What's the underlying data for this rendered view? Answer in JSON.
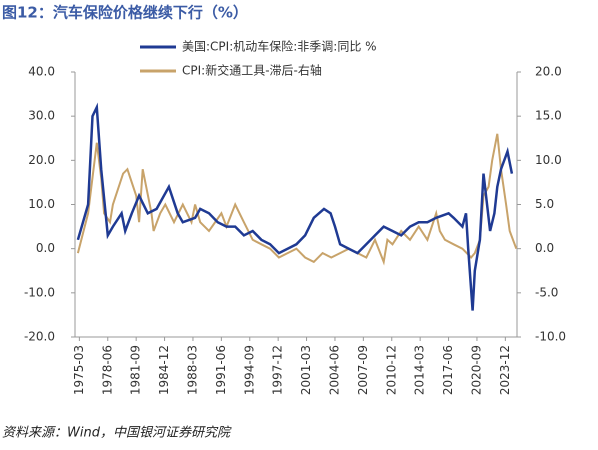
{
  "chart_data": {
    "type": "line",
    "title": "图12：汽车保险价格继续下行（%）",
    "source": "资料来源：Wind，中国银河证券研究院",
    "xlim": [
      "1974-09",
      "2025-04"
    ],
    "xticks": [
      "1975-03",
      "1978-06",
      "1981-09",
      "1984-12",
      "1988-03",
      "1991-06",
      "1994-09",
      "1997-12",
      "2001-03",
      "2004-06",
      "2007-09",
      "2010-12",
      "2014-03",
      "2017-06",
      "2020-09",
      "2023-12"
    ],
    "ylim": [
      -20,
      40
    ],
    "yticks": [
      {
        "value": -20,
        "label": "-20.0"
      },
      {
        "value": -10,
        "label": "-10.0"
      },
      {
        "value": 0,
        "label": "0.0"
      },
      {
        "value": 10,
        "label": "10.0"
      },
      {
        "value": 20,
        "label": "20.0"
      },
      {
        "value": 30,
        "label": "30.0"
      },
      {
        "value": 40,
        "label": "40.0"
      }
    ],
    "y2lim": [
      -10,
      20
    ],
    "y2ticks": [
      {
        "value": -10,
        "label": "-10.0"
      },
      {
        "value": -5,
        "label": "-5.0"
      },
      {
        "value": 0,
        "label": "0.0"
      },
      {
        "value": 5,
        "label": "5.0"
      },
      {
        "value": 10,
        "label": "10.0"
      },
      {
        "value": 15,
        "label": "15.0"
      },
      {
        "value": 20,
        "label": "20.0"
      }
    ],
    "series": [
      {
        "name": "美国:CPI:机动车保险:非季调:同比 %",
        "color": "#1f3a93",
        "x": [
          "1975-01",
          "1976-03",
          "1976-09",
          "1977-03",
          "1977-09",
          "1978-06",
          "1979-01",
          "1980-01",
          "1980-06",
          "1981-03",
          "1982-01",
          "1983-01",
          "1984-01",
          "1985-06",
          "1986-06",
          "1987-01",
          "1988-06",
          "1989-01",
          "1990-01",
          "1991-01",
          "1992-01",
          "1993-01",
          "1994-01",
          "1995-01",
          "1996-01",
          "1997-01",
          "1998-01",
          "1999-01",
          "2000-01",
          "2001-01",
          "2002-01",
          "2003-03",
          "2003-12",
          "2004-06",
          "2005-01",
          "2006-01",
          "2007-01",
          "2008-01",
          "2009-01",
          "2010-01",
          "2011-01",
          "2012-01",
          "2013-01",
          "2014-01",
          "2015-01",
          "2016-01",
          "2017-06",
          "2018-01",
          "2019-01",
          "2019-06",
          "2019-09",
          "2020-03",
          "2020-06",
          "2020-12",
          "2021-01",
          "2021-06",
          "2022-03",
          "2022-09",
          "2023-01",
          "2023-06",
          "2024-03",
          "2024-09"
        ],
        "values": [
          2,
          10,
          30,
          32,
          18,
          3,
          5,
          8,
          4,
          8,
          12,
          8,
          9,
          14,
          8,
          6,
          7,
          9,
          8,
          6,
          5,
          5,
          3,
          4,
          2,
          1,
          -1,
          0,
          1,
          3,
          7,
          9,
          8,
          5,
          1,
          0,
          -1,
          1,
          3,
          5,
          4,
          3,
          5,
          6,
          6,
          7,
          8,
          7,
          5,
          8,
          0,
          -14,
          -5,
          1,
          2,
          17,
          4,
          8,
          14,
          18,
          22,
          17
        ]
      },
      {
        "name": "CPI:新交通工具-滞后-右轴",
        "color": "#c8a36a",
        "axis": "y2",
        "x": [
          "1975-01",
          "1976-03",
          "1977-03",
          "1977-09",
          "1978-01",
          "1978-09",
          "1979-01",
          "1980-03",
          "1980-09",
          "1981-01",
          "1981-09",
          "1982-01",
          "1982-06",
          "1983-06",
          "1983-09",
          "1984-06",
          "1985-01",
          "1986-01",
          "1987-01",
          "1988-01",
          "1988-06",
          "1989-01",
          "1990-01",
          "1991-06",
          "1992-01",
          "1993-01",
          "1994-01",
          "1995-01",
          "1996-01",
          "1997-01",
          "1998-01",
          "1999-01",
          "2000-01",
          "2001-01",
          "2002-01",
          "2003-01",
          "2004-01",
          "2005-01",
          "2006-01",
          "2007-01",
          "2008-01",
          "2009-01",
          "2010-01",
          "2010-06",
          "2011-01",
          "2012-01",
          "2013-01",
          "2014-01",
          "2015-01",
          "2016-01",
          "2016-06",
          "2017-01",
          "2018-01",
          "2019-01",
          "2020-01",
          "2020-06",
          "2021-01",
          "2021-06",
          "2022-01",
          "2022-06",
          "2023-01",
          "2023-06",
          "2024-01",
          "2024-06",
          "2025-03"
        ],
        "values": [
          -0.5,
          4,
          12,
          8,
          4,
          3,
          5,
          8.5,
          9,
          8,
          6,
          3,
          9,
          4,
          2,
          4,
          5,
          3,
          5,
          3,
          5,
          3,
          2,
          4,
          2.5,
          5,
          3,
          1,
          0.5,
          0,
          -1,
          -0.5,
          0,
          -1,
          -1.5,
          -0.5,
          -1,
          -0.5,
          0,
          -0.5,
          -1,
          1,
          -1.5,
          1,
          0.5,
          2,
          1,
          2.5,
          1,
          4,
          2,
          1,
          0.5,
          0,
          -1,
          -0.5,
          1,
          6,
          7,
          10,
          13,
          9,
          5,
          2,
          0
        ]
      }
    ]
  }
}
